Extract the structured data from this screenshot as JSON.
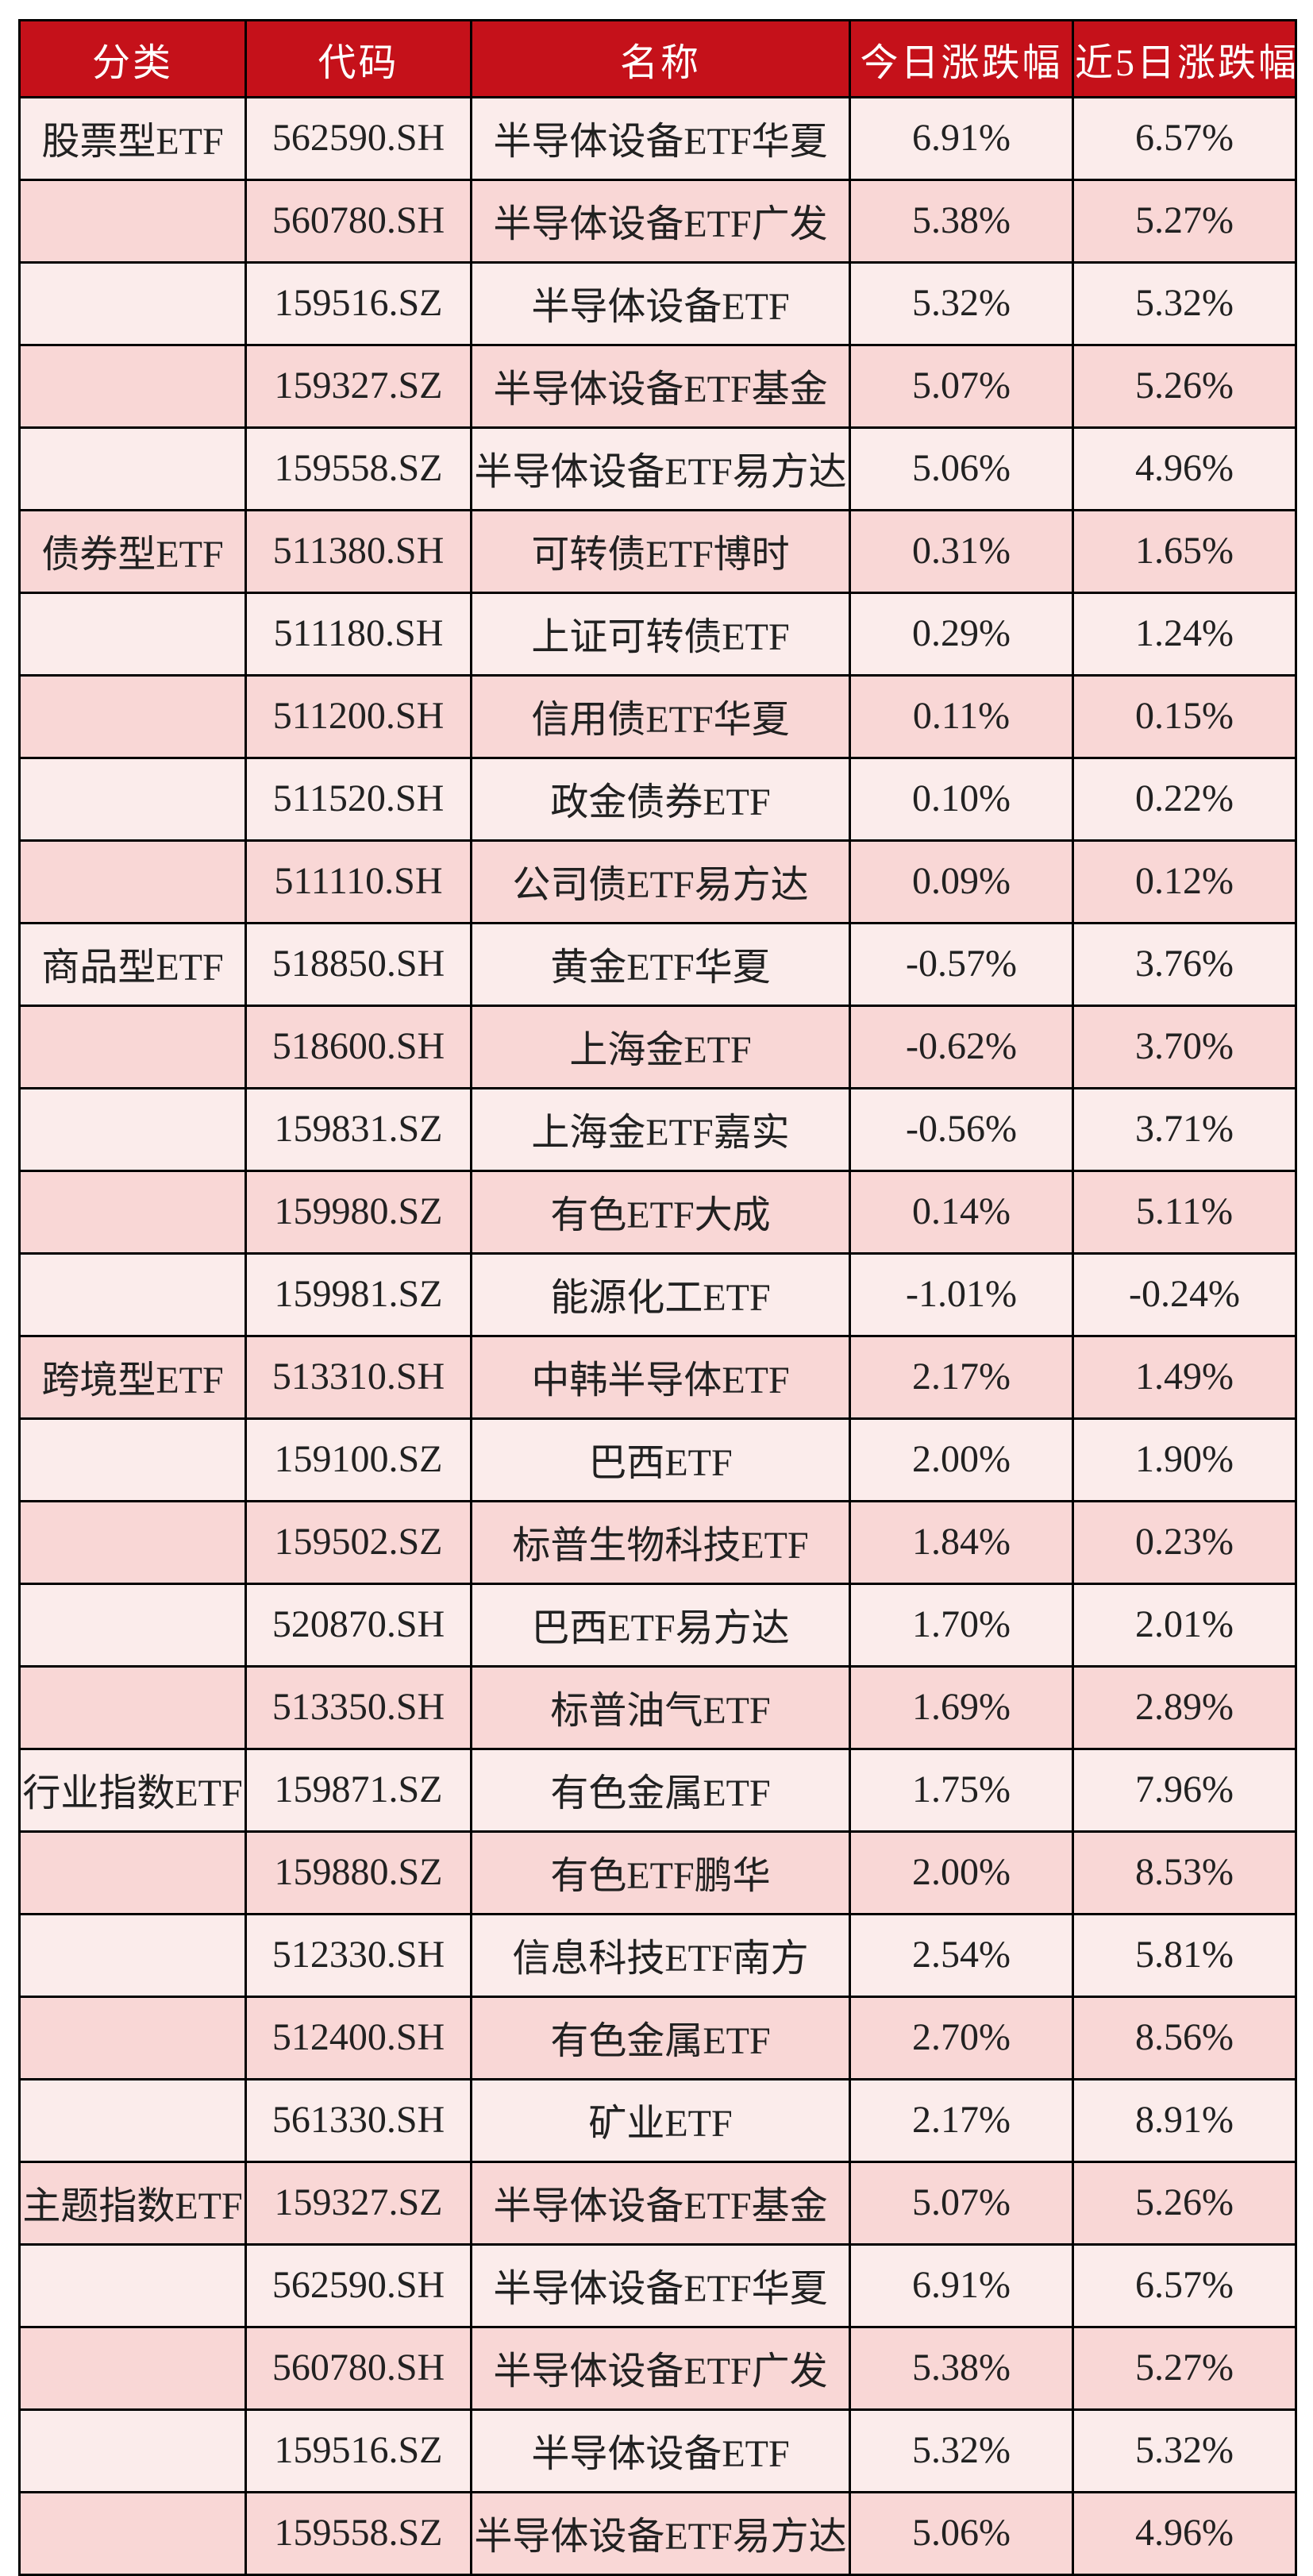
{
  "colors": {
    "header_bg": "#c5111a",
    "header_text": "#ffffff",
    "row_light_bg": "#fbeceb",
    "row_dark_bg": "#f9d7d6",
    "border": "#000000",
    "cell_text": "#212121"
  },
  "table": {
    "columns": [
      {
        "label": "分类"
      },
      {
        "label": "代码"
      },
      {
        "label": "名称"
      },
      {
        "label": "今日涨跌幅"
      },
      {
        "label": "近5日涨跌幅"
      }
    ],
    "rows": [
      {
        "category": "股票型ETF",
        "code": "562590.SH",
        "name": "半导体设备ETF华夏",
        "today": "6.91%",
        "five_day": "6.57%"
      },
      {
        "category": "",
        "code": "560780.SH",
        "name": "半导体设备ETF广发",
        "today": "5.38%",
        "five_day": "5.27%"
      },
      {
        "category": "",
        "code": "159516.SZ",
        "name": "半导体设备ETF",
        "today": "5.32%",
        "five_day": "5.32%"
      },
      {
        "category": "",
        "code": "159327.SZ",
        "name": "半导体设备ETF基金",
        "today": "5.07%",
        "five_day": "5.26%"
      },
      {
        "category": "",
        "code": "159558.SZ",
        "name": "半导体设备ETF易方达",
        "today": "5.06%",
        "five_day": "4.96%"
      },
      {
        "category": "债券型ETF",
        "code": "511380.SH",
        "name": "可转债ETF博时",
        "today": "0.31%",
        "five_day": "1.65%"
      },
      {
        "category": "",
        "code": "511180.SH",
        "name": "上证可转债ETF",
        "today": "0.29%",
        "five_day": "1.24%"
      },
      {
        "category": "",
        "code": "511200.SH",
        "name": "信用债ETF华夏",
        "today": "0.11%",
        "five_day": "0.15%"
      },
      {
        "category": "",
        "code": "511520.SH",
        "name": "政金债券ETF",
        "today": "0.10%",
        "five_day": "0.22%"
      },
      {
        "category": "",
        "code": "511110.SH",
        "name": "公司债ETF易方达",
        "today": "0.09%",
        "five_day": "0.12%"
      },
      {
        "category": "商品型ETF",
        "code": "518850.SH",
        "name": "黄金ETF华夏",
        "today": "-0.57%",
        "five_day": "3.76%"
      },
      {
        "category": "",
        "code": "518600.SH",
        "name": "上海金ETF",
        "today": "-0.62%",
        "five_day": "3.70%"
      },
      {
        "category": "",
        "code": "159831.SZ",
        "name": "上海金ETF嘉实",
        "today": "-0.56%",
        "five_day": "3.71%"
      },
      {
        "category": "",
        "code": "159980.SZ",
        "name": "有色ETF大成",
        "today": "0.14%",
        "five_day": "5.11%"
      },
      {
        "category": "",
        "code": "159981.SZ",
        "name": "能源化工ETF",
        "today": "-1.01%",
        "five_day": "-0.24%"
      },
      {
        "category": "跨境型ETF",
        "code": "513310.SH",
        "name": "中韩半导体ETF",
        "today": "2.17%",
        "five_day": "1.49%"
      },
      {
        "category": "",
        "code": "159100.SZ",
        "name": "巴西ETF",
        "today": "2.00%",
        "five_day": "1.90%"
      },
      {
        "category": "",
        "code": "159502.SZ",
        "name": "标普生物科技ETF",
        "today": "1.84%",
        "five_day": "0.23%"
      },
      {
        "category": "",
        "code": "520870.SH",
        "name": "巴西ETF易方达",
        "today": "1.70%",
        "five_day": "2.01%"
      },
      {
        "category": "",
        "code": "513350.SH",
        "name": "标普油气ETF",
        "today": "1.69%",
        "five_day": "2.89%"
      },
      {
        "category": "行业指数ETF",
        "code": "159871.SZ",
        "name": "有色金属ETF",
        "today": "1.75%",
        "five_day": "7.96%"
      },
      {
        "category": "",
        "code": "159880.SZ",
        "name": "有色ETF鹏华",
        "today": "2.00%",
        "five_day": "8.53%"
      },
      {
        "category": "",
        "code": "512330.SH",
        "name": "信息科技ETF南方",
        "today": "2.54%",
        "five_day": "5.81%"
      },
      {
        "category": "",
        "code": "512400.SH",
        "name": "有色金属ETF",
        "today": "2.70%",
        "five_day": "8.56%"
      },
      {
        "category": "",
        "code": "561330.SH",
        "name": "矿业ETF",
        "today": "2.17%",
        "five_day": "8.91%"
      },
      {
        "category": "主题指数ETF",
        "code": "159327.SZ",
        "name": "半导体设备ETF基金",
        "today": "5.07%",
        "five_day": "5.26%"
      },
      {
        "category": "",
        "code": "562590.SH",
        "name": "半导体设备ETF华夏",
        "today": "6.91%",
        "five_day": "6.57%"
      },
      {
        "category": "",
        "code": "560780.SH",
        "name": "半导体设备ETF广发",
        "today": "5.38%",
        "five_day": "5.27%"
      },
      {
        "category": "",
        "code": "159516.SZ",
        "name": "半导体设备ETF",
        "today": "5.32%",
        "five_day": "5.32%"
      },
      {
        "category": "",
        "code": "159558.SZ",
        "name": "半导体设备ETF易方达",
        "today": "5.06%",
        "five_day": "4.96%"
      }
    ]
  },
  "chart_data": {
    "type": "table",
    "title": "",
    "columns": [
      "分类",
      "代码",
      "名称",
      "今日涨跌幅",
      "近5日涨跌幅"
    ],
    "rows": [
      [
        "股票型ETF",
        "562590.SH",
        "半导体设备ETF华夏",
        "6.91%",
        "6.57%"
      ],
      [
        "",
        "560780.SH",
        "半导体设备ETF广发",
        "5.38%",
        "5.27%"
      ],
      [
        "",
        "159516.SZ",
        "半导体设备ETF",
        "5.32%",
        "5.32%"
      ],
      [
        "",
        "159327.SZ",
        "半导体设备ETF基金",
        "5.07%",
        "5.26%"
      ],
      [
        "",
        "159558.SZ",
        "半导体设备ETF易方达",
        "5.06%",
        "4.96%"
      ],
      [
        "债券型ETF",
        "511380.SH",
        "可转债ETF博时",
        "0.31%",
        "1.65%"
      ],
      [
        "",
        "511180.SH",
        "上证可转债ETF",
        "0.29%",
        "1.24%"
      ],
      [
        "",
        "511200.SH",
        "信用债ETF华夏",
        "0.11%",
        "0.15%"
      ],
      [
        "",
        "511520.SH",
        "政金债券ETF",
        "0.10%",
        "0.22%"
      ],
      [
        "",
        "511110.SH",
        "公司债ETF易方达",
        "0.09%",
        "0.12%"
      ],
      [
        "商品型ETF",
        "518850.SH",
        "黄金ETF华夏",
        "-0.57%",
        "3.76%"
      ],
      [
        "",
        "518600.SH",
        "上海金ETF",
        "-0.62%",
        "3.70%"
      ],
      [
        "",
        "159831.SZ",
        "上海金ETF嘉实",
        "-0.56%",
        "3.71%"
      ],
      [
        "",
        "159980.SZ",
        "有色ETF大成",
        "0.14%",
        "5.11%"
      ],
      [
        "",
        "159981.SZ",
        "能源化工ETF",
        "-1.01%",
        "-0.24%"
      ],
      [
        "跨境型ETF",
        "513310.SH",
        "中韩半导体ETF",
        "2.17%",
        "1.49%"
      ],
      [
        "",
        "159100.SZ",
        "巴西ETF",
        "2.00%",
        "1.90%"
      ],
      [
        "",
        "159502.SZ",
        "标普生物科技ETF",
        "1.84%",
        "0.23%"
      ],
      [
        "",
        "520870.SH",
        "巴西ETF易方达",
        "1.70%",
        "2.01%"
      ],
      [
        "",
        "513350.SH",
        "标普油气ETF",
        "1.69%",
        "2.89%"
      ],
      [
        "行业指数ETF",
        "159871.SZ",
        "有色金属ETF",
        "1.75%",
        "7.96%"
      ],
      [
        "",
        "159880.SZ",
        "有色ETF鹏华",
        "2.00%",
        "8.53%"
      ],
      [
        "",
        "512330.SH",
        "信息科技ETF南方",
        "2.54%",
        "5.81%"
      ],
      [
        "",
        "512400.SH",
        "有色金属ETF",
        "2.70%",
        "8.56%"
      ],
      [
        "",
        "561330.SH",
        "矿业ETF",
        "2.17%",
        "8.91%"
      ],
      [
        "主题指数ETF",
        "159327.SZ",
        "半导体设备ETF基金",
        "5.07%",
        "5.26%"
      ],
      [
        "",
        "562590.SH",
        "半导体设备ETF华夏",
        "6.91%",
        "6.57%"
      ],
      [
        "",
        "560780.SH",
        "半导体设备ETF广发",
        "5.38%",
        "5.27%"
      ],
      [
        "",
        "159516.SZ",
        "半导体设备ETF",
        "5.32%",
        "5.32%"
      ],
      [
        "",
        "159558.SZ",
        "半导体设备ETF易方达",
        "5.06%",
        "4.96%"
      ]
    ],
    "layout": {
      "zebra_striping": "odd rows light pink, even rows dark pink",
      "header_style": "red background, white text",
      "grid": "black 3px borders, all cells"
    }
  }
}
